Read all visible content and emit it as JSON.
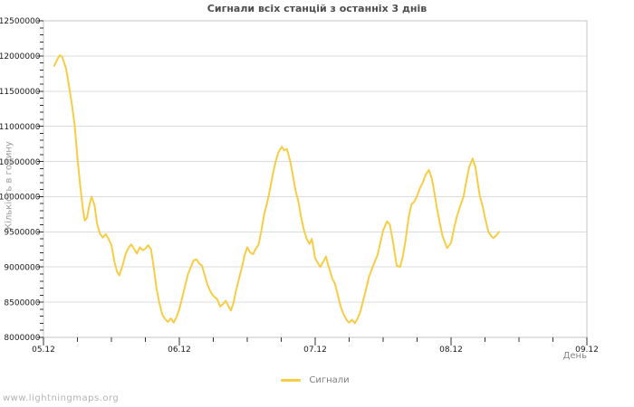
{
  "page": {
    "background": "#ffffff"
  },
  "watermark": "www.lightningmaps.org",
  "chart_data": {
    "type": "line",
    "title": "Сигнали всіх станцій з останніх 3 днів",
    "xlabel": "День",
    "ylabel": "Кількість в годину",
    "legend_position": "bottom-center",
    "grid": "horizontal-major-only",
    "background": "#ffffff",
    "frame_color": "#c6c6c6",
    "gridline_color": "#dcdcdc",
    "tick_color": "#333333",
    "tick_label_color": "#1a1a1a",
    "ylim": [
      8000000,
      12500000
    ],
    "y_major_step": 500000,
    "y_minor_step": 100000,
    "y_tick_labels": [
      "8000000",
      "8500000",
      "9000000",
      "9500000",
      "10000000",
      "10500000",
      "11000000",
      "11500000",
      "12000000",
      "12500000"
    ],
    "xlim_hours": [
      0,
      96
    ],
    "x_minor_step_hours": 6,
    "x_major_ticks": [
      {
        "hour": 0,
        "label": "05.12"
      },
      {
        "hour": 24,
        "label": "06.12"
      },
      {
        "hour": 48,
        "label": "07.12"
      },
      {
        "hour": 72,
        "label": "08.12"
      },
      {
        "hour": 96,
        "label": "09.12"
      }
    ],
    "series": [
      {
        "name": "Сигнали",
        "color": "#f6cd45",
        "line_width": 2,
        "x_unit": "hours since 05.12 00:00",
        "points": [
          [
            1.9,
            11860000
          ],
          [
            2.5,
            11960000
          ],
          [
            2.9,
            12010000
          ],
          [
            3.3,
            11990000
          ],
          [
            4,
            11820000
          ],
          [
            4.5,
            11580000
          ],
          [
            5,
            11320000
          ],
          [
            5.5,
            11020000
          ],
          [
            6,
            10550000
          ],
          [
            6.5,
            10150000
          ],
          [
            7,
            9800000
          ],
          [
            7.3,
            9660000
          ],
          [
            7.7,
            9700000
          ],
          [
            8,
            9840000
          ],
          [
            8.5,
            10000000
          ],
          [
            9,
            9880000
          ],
          [
            9.5,
            9600000
          ],
          [
            10,
            9470000
          ],
          [
            10.5,
            9420000
          ],
          [
            11,
            9470000
          ],
          [
            11.5,
            9400000
          ],
          [
            12,
            9310000
          ],
          [
            12.5,
            9090000
          ],
          [
            13,
            8930000
          ],
          [
            13.4,
            8880000
          ],
          [
            14,
            9030000
          ],
          [
            14.5,
            9180000
          ],
          [
            15,
            9270000
          ],
          [
            15.5,
            9320000
          ],
          [
            16,
            9260000
          ],
          [
            16.5,
            9190000
          ],
          [
            17,
            9280000
          ],
          [
            17.5,
            9240000
          ],
          [
            18,
            9260000
          ],
          [
            18.5,
            9310000
          ],
          [
            19,
            9250000
          ],
          [
            19.5,
            8980000
          ],
          [
            20,
            8680000
          ],
          [
            20.5,
            8480000
          ],
          [
            21,
            8320000
          ],
          [
            21.5,
            8260000
          ],
          [
            22,
            8220000
          ],
          [
            22.5,
            8270000
          ],
          [
            23,
            8210000
          ],
          [
            23.5,
            8290000
          ],
          [
            24,
            8400000
          ],
          [
            24.5,
            8560000
          ],
          [
            25,
            8730000
          ],
          [
            25.5,
            8890000
          ],
          [
            26,
            8990000
          ],
          [
            26.5,
            9090000
          ],
          [
            27,
            9110000
          ],
          [
            27.5,
            9050000
          ],
          [
            28,
            9020000
          ],
          [
            28.5,
            8880000
          ],
          [
            29,
            8740000
          ],
          [
            29.5,
            8650000
          ],
          [
            30,
            8590000
          ],
          [
            30.7,
            8540000
          ],
          [
            31.2,
            8440000
          ],
          [
            31.7,
            8470000
          ],
          [
            32.2,
            8520000
          ],
          [
            32.7,
            8440000
          ],
          [
            33.1,
            8380000
          ],
          [
            33.6,
            8500000
          ],
          [
            34,
            8660000
          ],
          [
            34.5,
            8820000
          ],
          [
            35,
            8980000
          ],
          [
            35.5,
            9160000
          ],
          [
            36,
            9280000
          ],
          [
            36.5,
            9210000
          ],
          [
            37,
            9180000
          ],
          [
            37.5,
            9260000
          ],
          [
            38,
            9320000
          ],
          [
            38.5,
            9520000
          ],
          [
            39,
            9760000
          ],
          [
            39.5,
            9910000
          ],
          [
            40,
            10100000
          ],
          [
            40.5,
            10310000
          ],
          [
            41,
            10500000
          ],
          [
            41.5,
            10630000
          ],
          [
            42.1,
            10710000
          ],
          [
            42.5,
            10660000
          ],
          [
            43,
            10680000
          ],
          [
            43.6,
            10500000
          ],
          [
            44,
            10330000
          ],
          [
            44.5,
            10100000
          ],
          [
            45,
            9940000
          ],
          [
            45.5,
            9710000
          ],
          [
            46,
            9530000
          ],
          [
            46.5,
            9400000
          ],
          [
            47,
            9330000
          ],
          [
            47.4,
            9400000
          ],
          [
            48,
            9120000
          ],
          [
            48.9,
            9000000
          ],
          [
            49.4,
            9070000
          ],
          [
            49.9,
            9150000
          ],
          [
            50.4,
            9000000
          ],
          [
            51,
            8840000
          ],
          [
            51.5,
            8760000
          ],
          [
            52,
            8600000
          ],
          [
            52.5,
            8440000
          ],
          [
            53,
            8330000
          ],
          [
            53.6,
            8240000
          ],
          [
            54,
            8210000
          ],
          [
            54.5,
            8250000
          ],
          [
            55,
            8200000
          ],
          [
            55.5,
            8270000
          ],
          [
            56,
            8370000
          ],
          [
            56.5,
            8530000
          ],
          [
            57,
            8690000
          ],
          [
            57.5,
            8860000
          ],
          [
            58,
            8970000
          ],
          [
            58.5,
            9070000
          ],
          [
            59,
            9170000
          ],
          [
            59.5,
            9340000
          ],
          [
            60,
            9520000
          ],
          [
            60.7,
            9650000
          ],
          [
            61.2,
            9600000
          ],
          [
            61.7,
            9380000
          ],
          [
            62.4,
            9020000
          ],
          [
            63,
            9000000
          ],
          [
            63.5,
            9160000
          ],
          [
            64,
            9400000
          ],
          [
            64.5,
            9700000
          ],
          [
            65,
            9890000
          ],
          [
            65.5,
            9930000
          ],
          [
            66,
            10010000
          ],
          [
            66.5,
            10120000
          ],
          [
            67,
            10200000
          ],
          [
            67.5,
            10310000
          ],
          [
            68.1,
            10380000
          ],
          [
            68.6,
            10260000
          ],
          [
            69,
            10080000
          ],
          [
            69.5,
            9840000
          ],
          [
            70,
            9630000
          ],
          [
            70.5,
            9440000
          ],
          [
            71.3,
            9270000
          ],
          [
            72,
            9340000
          ],
          [
            72.5,
            9540000
          ],
          [
            73,
            9710000
          ],
          [
            73.5,
            9840000
          ],
          [
            74.2,
            10000000
          ],
          [
            74.7,
            10220000
          ],
          [
            75.2,
            10420000
          ],
          [
            75.8,
            10540000
          ],
          [
            76.3,
            10420000
          ],
          [
            77.1,
            10000000
          ],
          [
            77.6,
            9860000
          ],
          [
            78,
            9700000
          ],
          [
            78.6,
            9500000
          ],
          [
            79.1,
            9440000
          ],
          [
            79.5,
            9410000
          ],
          [
            80,
            9450000
          ],
          [
            80.5,
            9500000
          ]
        ]
      }
    ]
  }
}
